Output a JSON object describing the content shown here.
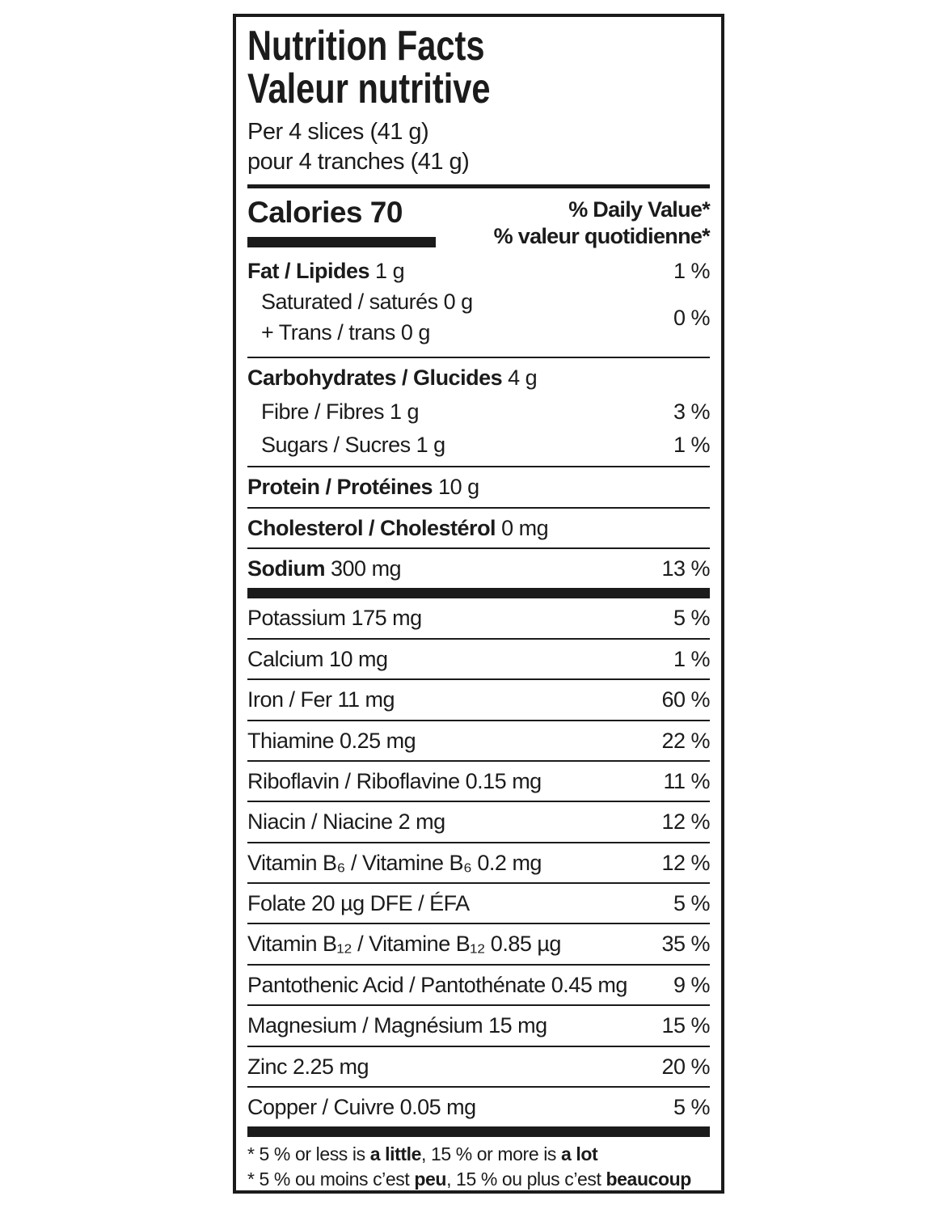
{
  "label": {
    "title_en": "Nutrition Facts",
    "title_fr": "Valeur nutritive",
    "serving_en": "Per 4 slices (41 g)",
    "serving_fr": "pour 4 tranches (41 g)",
    "calories": {
      "label": "Calories 70",
      "dv_en": "% Daily Value*",
      "dv_fr": "% valeur quotidienne*"
    },
    "rows": {
      "fat": {
        "bold": "Fat / Lipides",
        "rest": "1 g",
        "pct": "1 %"
      },
      "sat_trans": {
        "line1": "Saturated / saturés 0 g",
        "line2": "+ Trans / trans 0 g",
        "pct": "0 %"
      },
      "carbs": {
        "bold": "Carbohydrates / Glucides",
        "rest": "4 g"
      },
      "fibre": {
        "text": "Fibre / Fibres 1 g",
        "pct": "3 %"
      },
      "sugars": {
        "text": "Sugars / Sucres 1 g",
        "pct": "1 %"
      },
      "protein": {
        "bold": "Protein / Protéines",
        "rest": "10 g"
      },
      "cholesterol": {
        "bold": "Cholesterol / Cholestérol",
        "rest": "0 mg"
      },
      "sodium": {
        "bold": "Sodium",
        "rest": "300 mg",
        "pct": "13 %"
      },
      "potassium": {
        "text": "Potassium 175 mg",
        "pct": "5 %"
      },
      "calcium": {
        "text": "Calcium 10 mg",
        "pct": "1 %"
      },
      "iron": {
        "text": "Iron / Fer 11 mg",
        "pct": "60 %"
      },
      "thiamine": {
        "text": "Thiamine 0.25 mg",
        "pct": "22 %"
      },
      "riboflavin": {
        "text": "Riboflavin / Riboflavine 0.15 mg",
        "pct": "11 %"
      },
      "niacin": {
        "text": "Niacin / Niacine 2 mg",
        "pct": "12 %"
      },
      "vitamin_b6": {
        "text": "Vitamin B₆ / Vitamine B₆ 0.2 mg",
        "pct": "12 %"
      },
      "folate": {
        "text": "Folate 20 µg DFE / ÉFA",
        "pct": "5 %"
      },
      "vitamin_b12": {
        "text": "Vitamin B₁₂ / Vitamine B₁₂ 0.85 µg",
        "pct": "35 %"
      },
      "pantothenic": {
        "text": "Pantothenic Acid / Pantothénate 0.45 mg",
        "pct": "9 %"
      },
      "magnesium": {
        "text": "Magnesium / Magnésium 15 mg",
        "pct": "15 %"
      },
      "zinc": {
        "text": "Zinc 2.25 mg",
        "pct": "20 %"
      },
      "copper": {
        "text": "Copper / Cuivre 0.05 mg",
        "pct": "5 %"
      }
    },
    "footnotes": {
      "en": {
        "p1": "* 5 % or less is ",
        "b1": "a little",
        "p2": ", 15 % or more is ",
        "b2": "a lot"
      },
      "fr": {
        "p1": "* 5 % ou moins c’est ",
        "b1": "peu",
        "p2": ", 15 % ou plus c’est ",
        "b2": "beaucoup"
      }
    }
  }
}
